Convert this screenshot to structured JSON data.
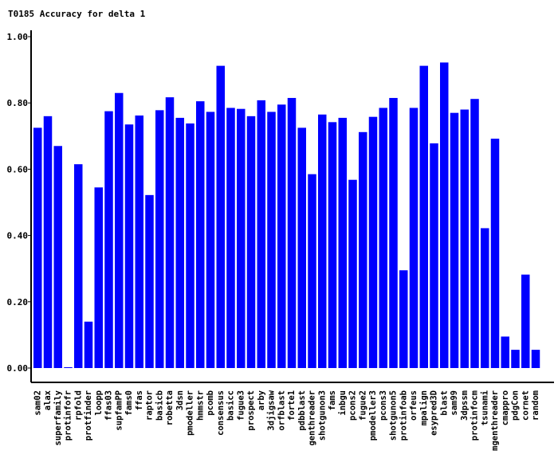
{
  "chart_data": {
    "type": "bar",
    "title": "T0185 Accuracy for delta 1",
    "xlabel": "",
    "ylabel": "",
    "ylim": [
      0,
      1
    ],
    "yticks": [
      "0.00",
      "0.20",
      "0.40",
      "0.60",
      "0.80",
      "1.00"
    ],
    "bar_color": "#0000ff",
    "categories": [
      "sam02",
      "alax",
      "superfamily",
      "protinfofr",
      "rpfold",
      "protfinder",
      "loopp",
      "ffas03",
      "supfamPP",
      "fams0",
      "ffas",
      "raptor",
      "basicb",
      "robetta",
      "3dsn",
      "pmodeller",
      "hmmstr",
      "pcomb",
      "consensus",
      "basicc",
      "fugue3",
      "prospect",
      "arby",
      "3djigsaw",
      "orfblast",
      "forte1",
      "pdbblast",
      "genthreader",
      "shotgunon3",
      "fams",
      "inbgu",
      "pcons2",
      "fugue2",
      "pmodeller3",
      "pcons3",
      "shotgunon5",
      "protinfoab",
      "orfeus",
      "mpalign",
      "esypred3D",
      "blast",
      "sam99",
      "3dpssm",
      "protinfocm",
      "tsunami",
      "mgenthreader",
      "cmappro",
      "pdgCon",
      "cornet",
      "random"
    ],
    "values": [
      0.725,
      0.76,
      0.67,
      0.0,
      0.615,
      0.14,
      0.545,
      0.775,
      0.83,
      0.735,
      0.762,
      0.522,
      0.778,
      0.817,
      0.755,
      0.738,
      0.805,
      0.773,
      0.912,
      0.785,
      0.782,
      0.76,
      0.808,
      0.773,
      0.795,
      0.815,
      0.725,
      0.585,
      0.765,
      0.742,
      0.755,
      0.568,
      0.712,
      0.758,
      0.785,
      0.815,
      0.295,
      0.785,
      0.912,
      0.678,
      0.922,
      0.77,
      0.78,
      0.812,
      0.422,
      0.692,
      0.095,
      0.055,
      0.282,
      0.055
    ]
  }
}
